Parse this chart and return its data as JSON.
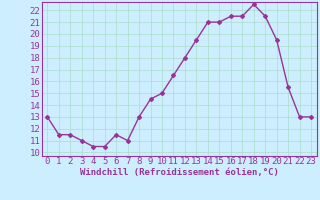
{
  "x": [
    0,
    1,
    2,
    3,
    4,
    5,
    6,
    7,
    8,
    9,
    10,
    11,
    12,
    13,
    14,
    15,
    16,
    17,
    18,
    19,
    20,
    21,
    22,
    23
  ],
  "y": [
    13,
    11.5,
    11.5,
    11,
    10.5,
    10.5,
    11.5,
    11,
    13,
    14.5,
    15,
    16.5,
    18,
    19.5,
    21,
    21,
    21.5,
    21.5,
    22.5,
    21.5,
    19.5,
    15.5,
    13,
    13
  ],
  "line_color": "#993399",
  "marker": "D",
  "marker_size": 2,
  "bg_color": "#cceeff",
  "grid_color": "#aaddcc",
  "xlabel": "Windchill (Refroidissement éolien,°C)",
  "xlabel_color": "#993399",
  "tick_color": "#993399",
  "ylim": [
    9.7,
    22.7
  ],
  "xlim": [
    -0.5,
    23.5
  ],
  "yticks": [
    10,
    11,
    12,
    13,
    14,
    15,
    16,
    17,
    18,
    19,
    20,
    21,
    22
  ],
  "xticks": [
    0,
    1,
    2,
    3,
    4,
    5,
    6,
    7,
    8,
    9,
    10,
    11,
    12,
    13,
    14,
    15,
    16,
    17,
    18,
    19,
    20,
    21,
    22,
    23
  ],
  "spine_color": "#993399",
  "font_size": 6.5,
  "linewidth": 1.0
}
